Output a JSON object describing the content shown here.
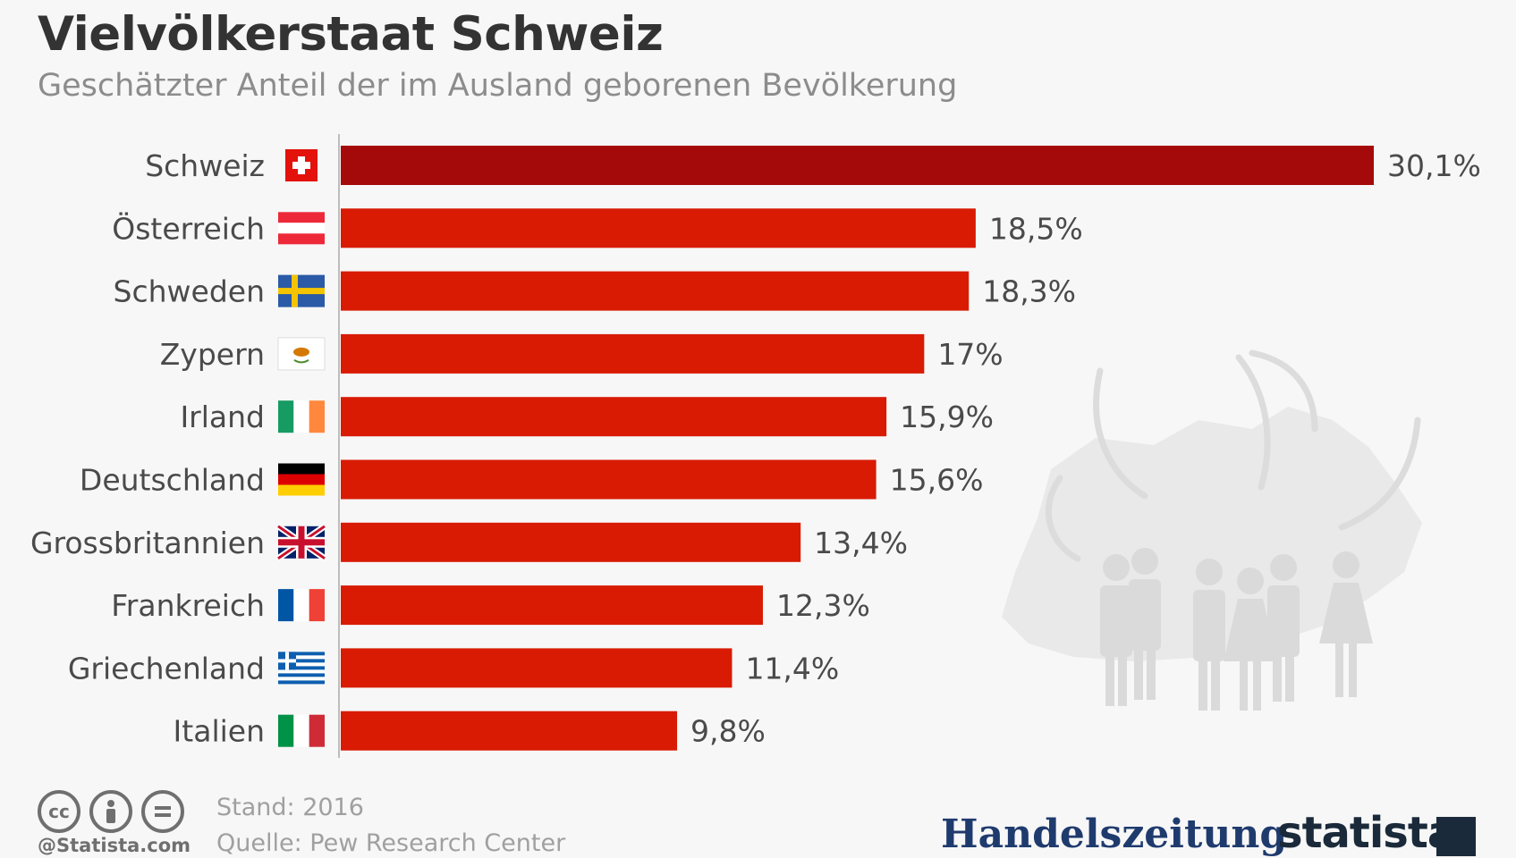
{
  "header": {
    "title": "Vielvölkerstaat Schweiz",
    "subtitle": "Geschätzter Anteil der im Ausland geborenen Bevölkerung"
  },
  "chart_data": {
    "type": "bar",
    "orientation": "horizontal",
    "categories": [
      "Schweiz",
      "Österreich",
      "Schweden",
      "Zypern",
      "Irland",
      "Deutschland",
      "Grossbritannien",
      "Frankreich",
      "Griechenland",
      "Italien"
    ],
    "values": [
      30.1,
      18.5,
      18.3,
      17,
      15.9,
      15.6,
      13.4,
      12.3,
      11.4,
      9.8
    ],
    "value_labels": [
      "30,1%",
      "18,5%",
      "18,3%",
      "17%",
      "15,9%",
      "15,6%",
      "13,4%",
      "12,3%",
      "11,4%",
      "9,8%"
    ],
    "flags": [
      "flag-switzerland-icon",
      "flag-austria-icon",
      "flag-sweden-icon",
      "flag-cyprus-icon",
      "flag-ireland-icon",
      "flag-germany-icon",
      "flag-uk-icon",
      "flag-france-icon",
      "flag-greece-icon",
      "flag-italy-icon"
    ],
    "colors": {
      "highlight": "#a50a0a",
      "bar": "#d81b02",
      "label": "#4a4a4a",
      "value": "#4a4a4a"
    },
    "grid": false,
    "legend": "none"
  },
  "footer": {
    "stand": "Stand: 2016",
    "quelle": "Quelle: Pew Research Center",
    "credit": "@Statista.com",
    "license_icons": [
      "cc-icon",
      "attribution-icon",
      "no-derivatives-icon"
    ],
    "brand_handelszeitung": "Handelszeitung",
    "brand_statista": "statista"
  }
}
